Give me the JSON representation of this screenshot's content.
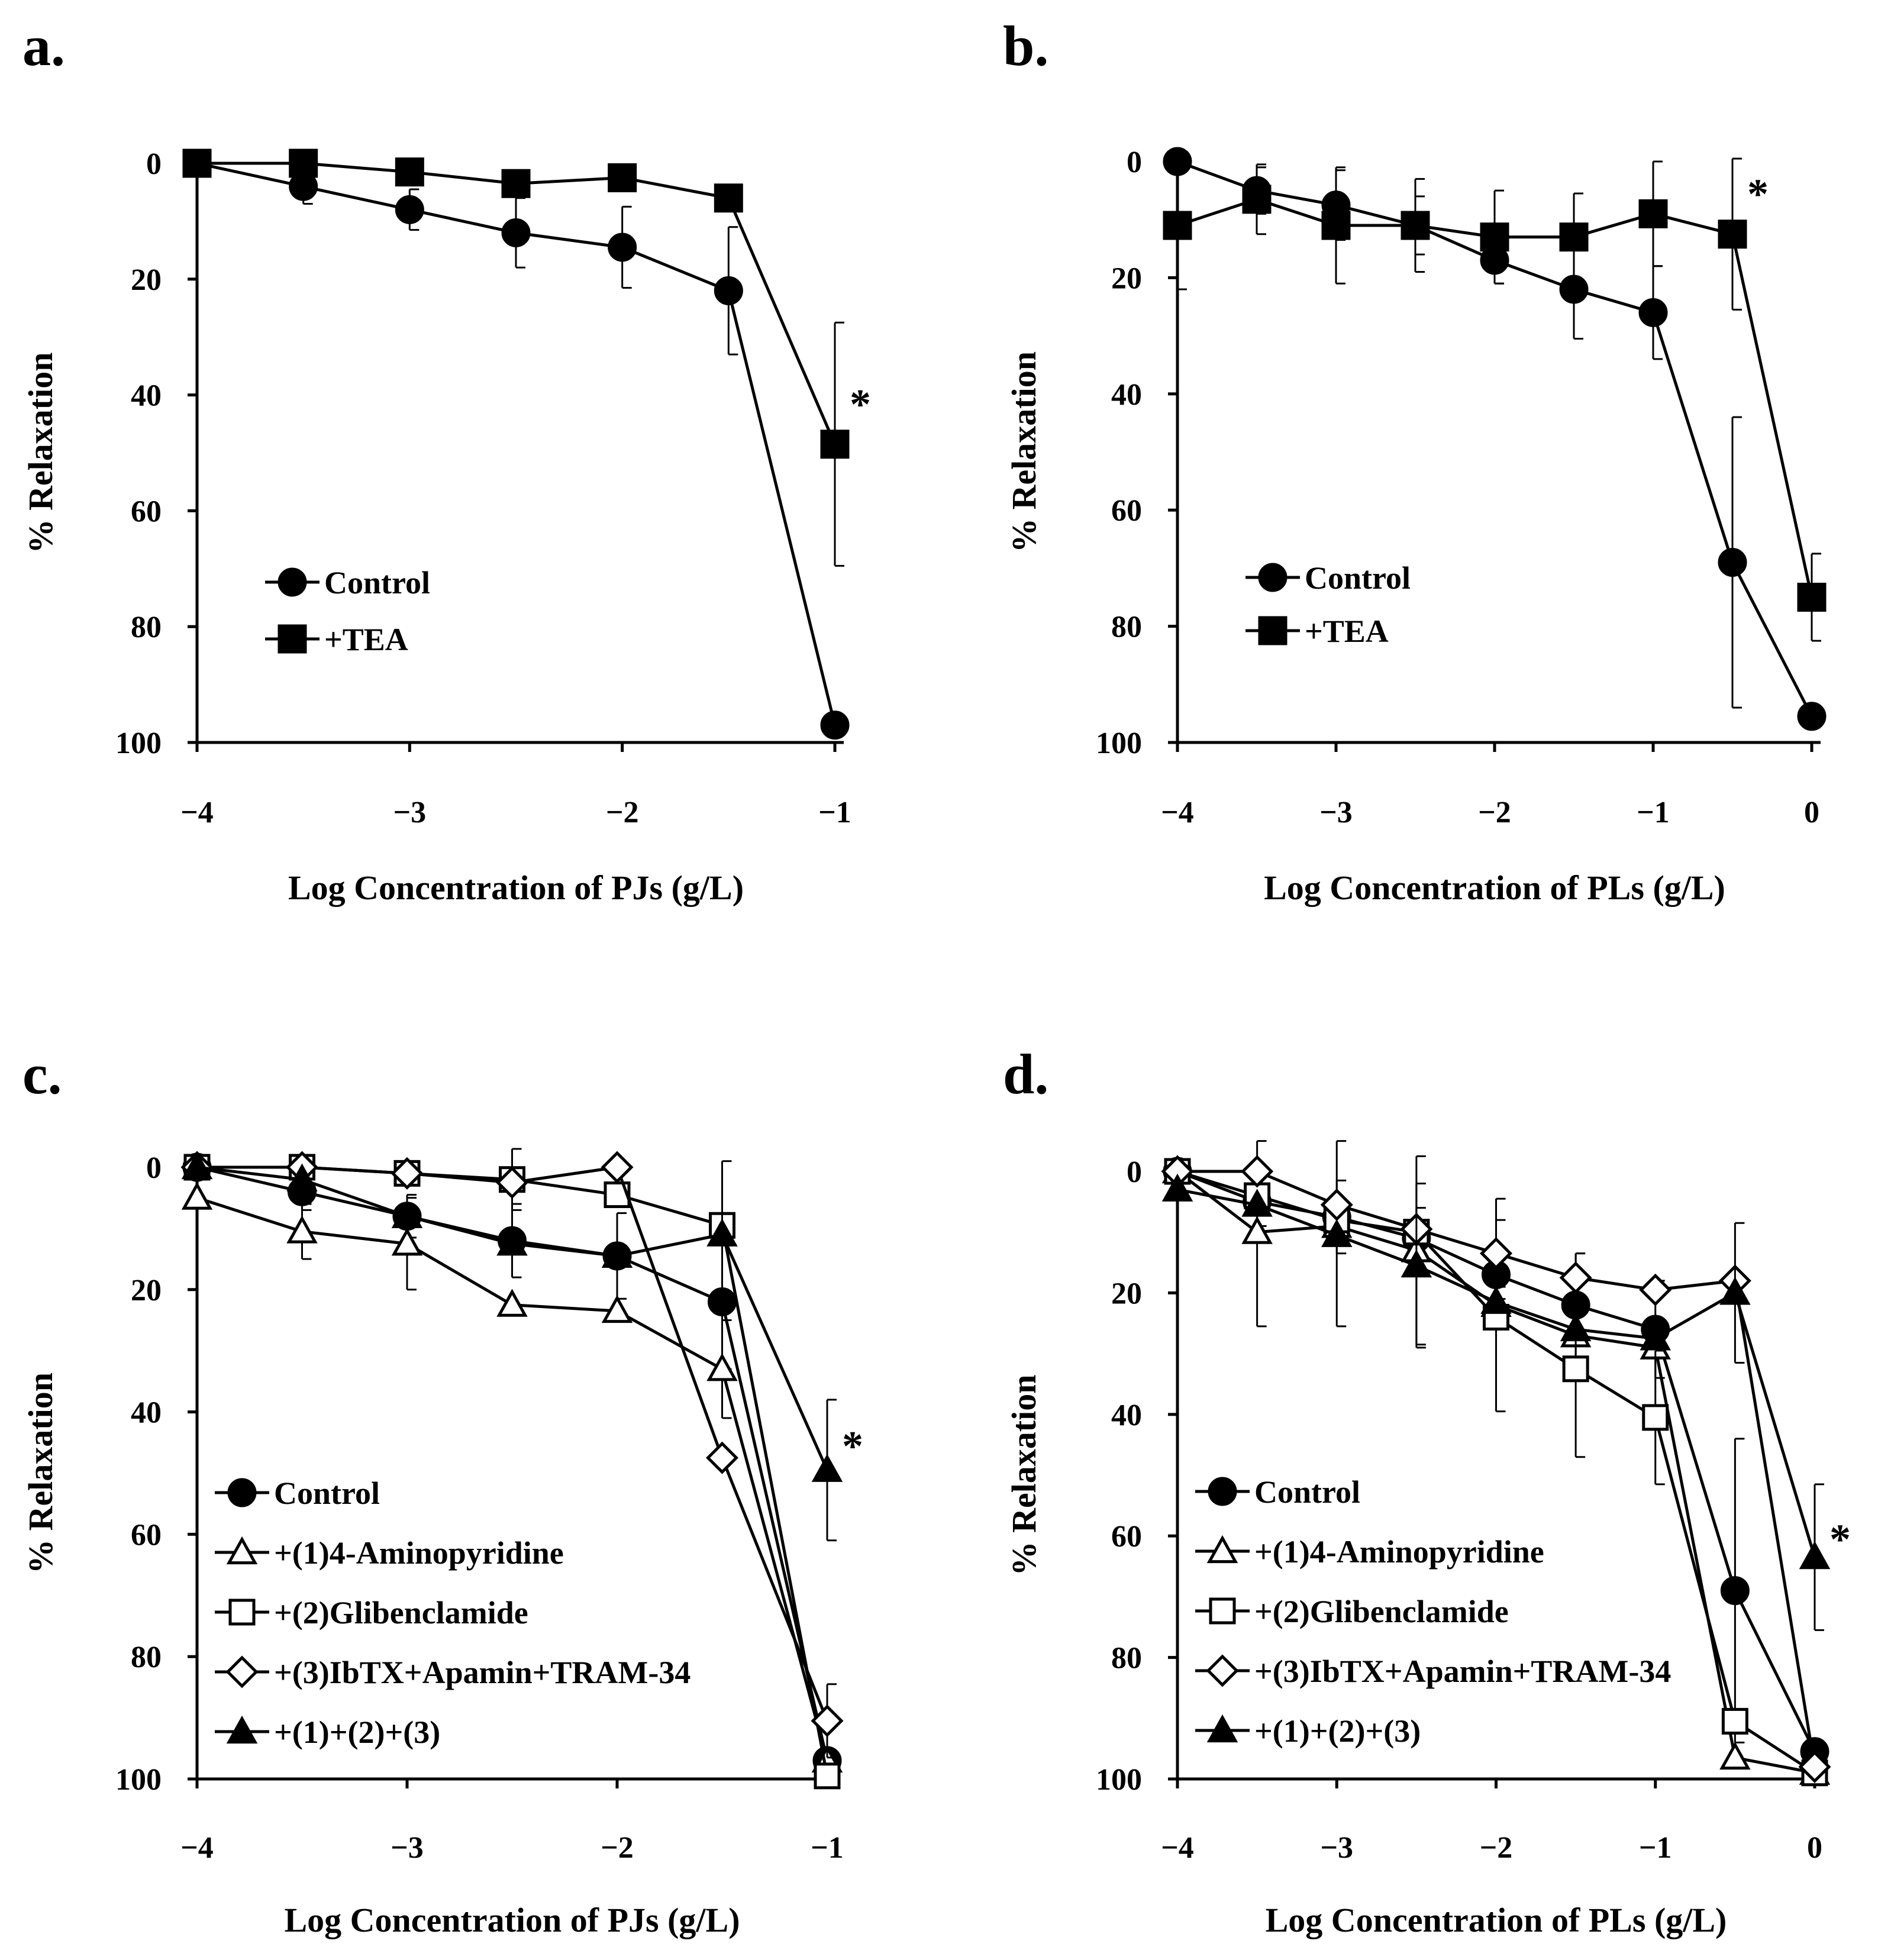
{
  "chart_data": [
    {
      "type": "line",
      "panel_label": "a.",
      "xlabel": "Log Concentration of PJs (g/L)",
      "ylabel": "% Relaxation",
      "xlim": [
        -4,
        -1
      ],
      "ylim": [
        0,
        100
      ],
      "y_inverted": true,
      "xticks": [
        -4,
        -3,
        -2,
        -1
      ],
      "xtick_labels": [
        "−4",
        "−3",
        "−2",
        "−1"
      ],
      "yticks": [
        0,
        20,
        40,
        60,
        80,
        100
      ],
      "ytick_labels": [
        "0",
        "20",
        "40",
        "60",
        "80",
        "100"
      ],
      "x": [
        -4,
        -3.5,
        -3,
        -2.5,
        -2,
        -1.5,
        -1
      ],
      "legend_position": "center-left",
      "series": [
        {
          "name": "Control",
          "marker": "circle-filled",
          "values": [
            0,
            4,
            8,
            12,
            14.5,
            22,
            97
          ],
          "err": [
            0,
            3,
            3.5,
            6,
            7,
            11,
            0
          ]
        },
        {
          "name": "+TEA",
          "marker": "square-filled",
          "values": [
            0,
            0,
            1.5,
            3.5,
            2.5,
            6,
            48.5
          ],
          "err": [
            0,
            0,
            0,
            0,
            0,
            0,
            21
          ]
        }
      ],
      "annotations": [
        {
          "text": "*",
          "x": -1,
          "y": 41
        }
      ]
    },
    {
      "type": "line",
      "panel_label": "b.",
      "xlabel": "Log Concentration of PLs (g/L)",
      "ylabel": "% Relaxation",
      "xlim": [
        -4,
        0
      ],
      "ylim": [
        0,
        100
      ],
      "y_inverted": true,
      "xticks": [
        -4,
        -3,
        -2,
        -1,
        0
      ],
      "xtick_labels": [
        "−4",
        "−3",
        "−2",
        "−1",
        "0"
      ],
      "yticks": [
        0,
        20,
        40,
        60,
        80,
        100
      ],
      "ytick_labels": [
        "0",
        "20",
        "40",
        "60",
        "80",
        "100"
      ],
      "x": [
        -4,
        -3.5,
        -3,
        -2.5,
        -2,
        -1.5,
        -1,
        -0.5,
        0
      ],
      "legend_position": "center-left",
      "series": [
        {
          "name": "Control",
          "marker": "circle-filled",
          "values": [
            0,
            5,
            7.5,
            11,
            17,
            22,
            26,
            69,
            95.5
          ],
          "err": [
            0,
            4,
            6,
            5,
            4,
            8.5,
            8,
            25,
            0
          ]
        },
        {
          "name": "+TEA",
          "marker": "square-filled",
          "values": [
            11,
            6.5,
            11,
            11,
            13,
            13,
            9,
            12.5,
            75
          ],
          "err": [
            11,
            6,
            10,
            8,
            8,
            7.5,
            9,
            13,
            7.5
          ]
        }
      ],
      "annotations": [
        {
          "text": "*",
          "x": -0.5,
          "y": 5
        }
      ]
    },
    {
      "type": "line",
      "panel_label": "c.",
      "xlabel": "Log Concentration of PJs (g/L)",
      "ylabel": "% Relaxation",
      "xlim": [
        -4,
        -1
      ],
      "ylim": [
        0,
        100
      ],
      "y_inverted": true,
      "xticks": [
        -4,
        -3,
        -2,
        -1
      ],
      "xtick_labels": [
        "−4",
        "−3",
        "−2",
        "−1"
      ],
      "yticks": [
        0,
        20,
        40,
        60,
        80,
        100
      ],
      "ytick_labels": [
        "0",
        "20",
        "40",
        "60",
        "80",
        "100"
      ],
      "x": [
        -4,
        -3.5,
        -3,
        -2.5,
        -2,
        -1.5,
        -1
      ],
      "legend_position": "bottom-left",
      "series": [
        {
          "name": "Control",
          "marker": "circle-filled",
          "values": [
            0,
            4,
            8,
            12,
            14.5,
            22,
            97
          ],
          "err": [
            0,
            3,
            3.5,
            6,
            7,
            11,
            0
          ]
        },
        {
          "name": "+(1)4-Aminopyridine",
          "marker": "triangle-open",
          "values": [
            5,
            10.5,
            12.5,
            22.5,
            23.5,
            33,
            97
          ],
          "err": [
            0,
            4.5,
            7.5,
            0,
            0,
            8,
            0
          ]
        },
        {
          "name": "+(2)Glibenclamide",
          "marker": "square-open",
          "values": [
            0,
            0,
            1,
            2,
            4.5,
            9.5,
            99.5
          ],
          "err": [
            0,
            0,
            0,
            5,
            0,
            0,
            0
          ]
        },
        {
          "name": "+(3)IbTX+Apamin+TRAM-34",
          "marker": "diamond-open",
          "values": [
            0,
            0,
            1,
            2.5,
            0,
            47.5,
            90.5
          ],
          "err": [
            0,
            0,
            0,
            0,
            0,
            0,
            6
          ]
        },
        {
          "name": "+(1)+(2)+(3)",
          "marker": "triangle-filled",
          "values": [
            0,
            2,
            8,
            12.5,
            14.5,
            11,
            49.5
          ],
          "err": [
            0,
            0,
            0,
            0,
            0,
            12,
            11.5
          ]
        }
      ],
      "annotations": [
        {
          "text": "*",
          "x": -1,
          "y": 45
        }
      ]
    },
    {
      "type": "line",
      "panel_label": "d.",
      "xlabel": "Log Concentration of PLs (g/L)",
      "ylabel": "% Relaxation",
      "xlim": [
        -4,
        0
      ],
      "ylim": [
        0,
        100
      ],
      "y_inverted": true,
      "xticks": [
        -4,
        -3,
        -2,
        -1,
        0
      ],
      "xtick_labels": [
        "−4",
        "−3",
        "−2",
        "−1",
        "0"
      ],
      "yticks": [
        0,
        20,
        40,
        60,
        80,
        100
      ],
      "ytick_labels": [
        "0",
        "20",
        "40",
        "60",
        "80",
        "100"
      ],
      "x": [
        -4,
        -3.5,
        -3,
        -2.5,
        -2,
        -1.5,
        -1,
        -0.5,
        0
      ],
      "legend_position": "bottom-left",
      "series": [
        {
          "name": "Control",
          "marker": "circle-filled",
          "values": [
            0,
            5,
            7.5,
            11,
            17,
            22,
            26,
            69,
            95.5
          ],
          "err": [
            0,
            4,
            6,
            5,
            4,
            8.5,
            8,
            25,
            0
          ]
        },
        {
          "name": "+(1)4-Aminopyridine",
          "marker": "triangle-open",
          "values": [
            0,
            10,
            9,
            13,
            22,
            27,
            29,
            96.5,
            99
          ],
          "err": [
            0,
            15.5,
            16.5,
            15.5,
            17.5,
            0,
            0,
            0,
            0
          ]
        },
        {
          "name": "+(2)Glibenclamide",
          "marker": "square-open",
          "values": [
            0,
            4,
            8,
            10,
            24,
            32.5,
            40.5,
            90.5,
            99
          ],
          "err": [
            0,
            0,
            0,
            0,
            0,
            14.5,
            11,
            0,
            0
          ]
        },
        {
          "name": "+(3)IbTX+Apamin+TRAM-34",
          "marker": "diamond-open",
          "values": [
            0,
            0,
            5.5,
            9.5,
            13.5,
            17.5,
            19.5,
            18,
            98
          ],
          "err": [
            0,
            0,
            0,
            0,
            5.5,
            4,
            0,
            0,
            0
          ]
        },
        {
          "name": "+(1)+(2)+(3)",
          "marker": "triangle-filled",
          "values": [
            3,
            5.5,
            10.5,
            15.5,
            21.5,
            26,
            27.5,
            20,
            63.5
          ],
          "err": [
            0,
            0,
            0,
            13.5,
            0,
            0,
            0,
            11.5,
            12
          ]
        }
      ],
      "annotations": [
        {
          "text": "*",
          "x": 0,
          "y": 60
        }
      ]
    }
  ]
}
